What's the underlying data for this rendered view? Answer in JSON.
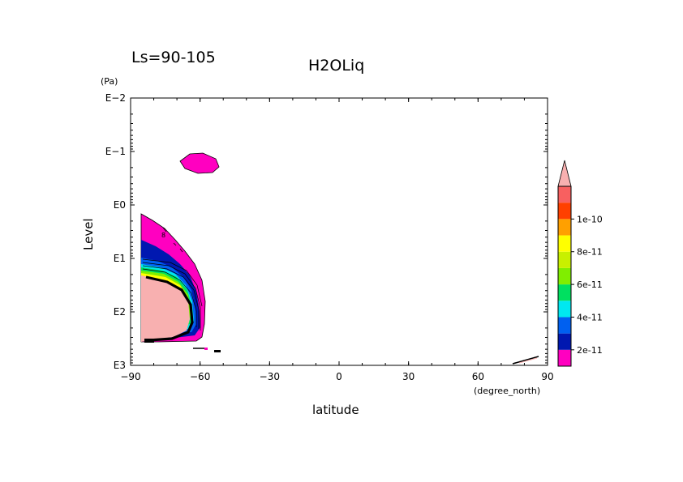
{
  "chart_data": {
    "type": "contour",
    "title": "H2OLiq",
    "subtitle": "Ls=90-105",
    "xlabel": "latitude",
    "xunit": "(degree_north)",
    "ylabel": "Level",
    "yunit": "(Pa)",
    "xlim": [
      -90,
      90
    ],
    "xticks": [
      -90,
      -60,
      -30,
      0,
      30,
      60,
      90
    ],
    "xtick_labels": [
      "−90",
      "−60",
      "−30",
      "0",
      "30",
      "60",
      "90"
    ],
    "ytick_labels": [
      "E−2",
      "E−1",
      "E0",
      "E1",
      "E2",
      "E3"
    ],
    "y_scale": "log (reversed, pressure)",
    "ylim": [
      1000,
      0.01
    ],
    "colorbar": {
      "levels": [
        "2e-11",
        "4e-11",
        "6e-11",
        "8e-11",
        "1e-10"
      ],
      "colors": [
        "#ff00c0",
        "#0018b0",
        "#0060f0",
        "#00e8f0",
        "#00e060",
        "#80ee00",
        "#c8f000",
        "#ffff00",
        "#ffa000",
        "#ff4000",
        "#f86060",
        "#f8b0b0"
      ]
    },
    "contour_label": "8"
  }
}
